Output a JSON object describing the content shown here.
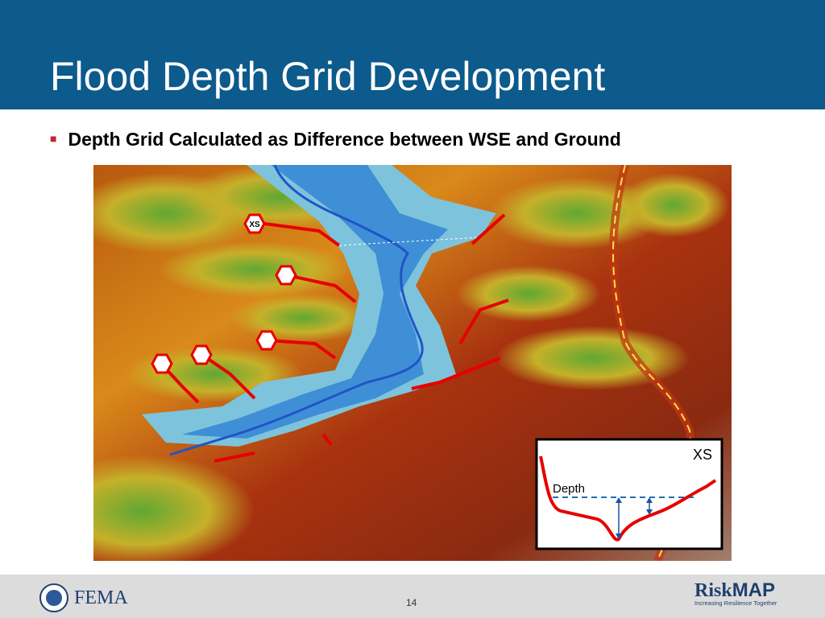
{
  "header": {
    "title": "Flood Depth Grid Development"
  },
  "bullets": [
    "Depth Grid Calculated as Difference between WSE and Ground"
  ],
  "map": {
    "label": "XS"
  },
  "inset": {
    "title": "XS",
    "label": "Depth"
  },
  "footer": {
    "left_logo": "FEMA",
    "page_number": 14,
    "right_logo": {
      "part1": "Risk",
      "part2": "MAP",
      "tagline": "Increasing Resilience Together"
    }
  }
}
